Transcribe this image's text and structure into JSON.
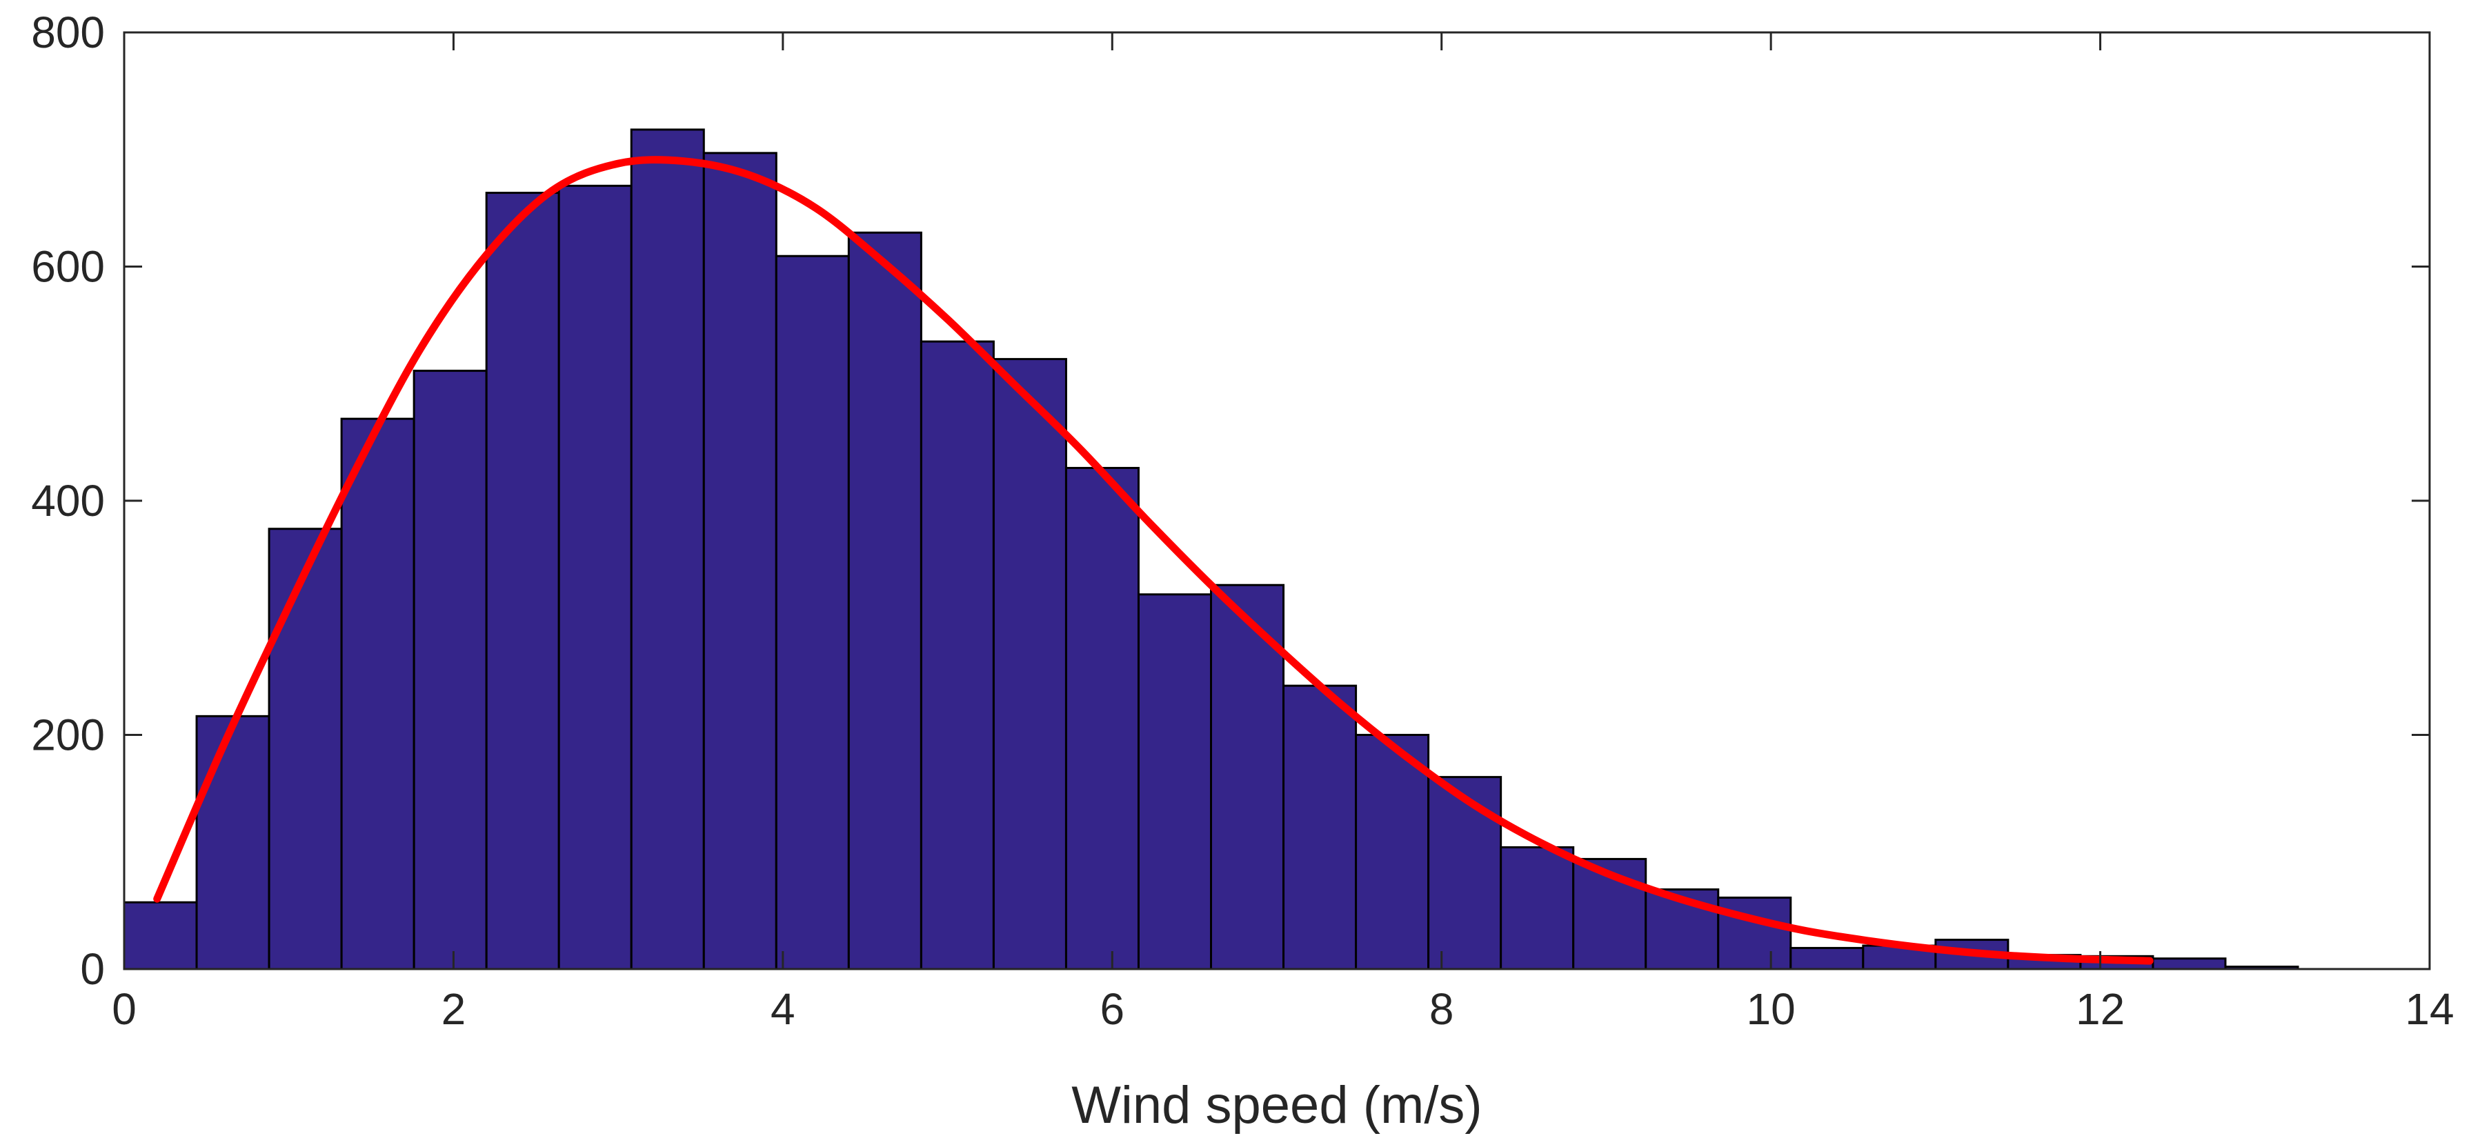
{
  "chart_data": {
    "type": "bar",
    "subtype": "histogram_with_fitted_curve",
    "title": "",
    "xlabel": "Wind speed (m/s)",
    "ylabel": "",
    "xlim": [
      0,
      14
    ],
    "ylim": [
      0,
      800
    ],
    "xticks": [
      0,
      2,
      4,
      6,
      8,
      10,
      12,
      14
    ],
    "yticks": [
      0,
      200,
      400,
      600,
      800
    ],
    "xtick_labels": [
      "0",
      "2",
      "4",
      "6",
      "8",
      "10",
      "12",
      "14"
    ],
    "ytick_labels": [
      "0",
      "200",
      "400",
      "600",
      "800"
    ],
    "grid": false,
    "legend": "none",
    "bin_start": 0,
    "bin_width": 0.44,
    "bins": [
      {
        "x0": 0.0,
        "x1": 0.44,
        "count": 57
      },
      {
        "x0": 0.44,
        "x1": 0.88,
        "count": 216
      },
      {
        "x0": 0.88,
        "x1": 1.32,
        "count": 376
      },
      {
        "x0": 1.32,
        "x1": 1.76,
        "count": 470
      },
      {
        "x0": 1.76,
        "x1": 2.2,
        "count": 511
      },
      {
        "x0": 2.2,
        "x1": 2.64,
        "count": 663
      },
      {
        "x0": 2.64,
        "x1": 3.08,
        "count": 669
      },
      {
        "x0": 3.08,
        "x1": 3.52,
        "count": 717
      },
      {
        "x0": 3.52,
        "x1": 3.96,
        "count": 697
      },
      {
        "x0": 3.96,
        "x1": 4.4,
        "count": 609
      },
      {
        "x0": 4.4,
        "x1": 4.84,
        "count": 629
      },
      {
        "x0": 4.84,
        "x1": 5.28,
        "count": 536
      },
      {
        "x0": 5.28,
        "x1": 5.72,
        "count": 521
      },
      {
        "x0": 5.72,
        "x1": 6.16,
        "count": 428
      },
      {
        "x0": 6.16,
        "x1": 6.6,
        "count": 320
      },
      {
        "x0": 6.6,
        "x1": 7.04,
        "count": 328
      },
      {
        "x0": 7.04,
        "x1": 7.48,
        "count": 242
      },
      {
        "x0": 7.48,
        "x1": 7.92,
        "count": 200
      },
      {
        "x0": 7.92,
        "x1": 8.36,
        "count": 164
      },
      {
        "x0": 8.36,
        "x1": 8.8,
        "count": 104
      },
      {
        "x0": 8.8,
        "x1": 9.24,
        "count": 94
      },
      {
        "x0": 9.24,
        "x1": 9.68,
        "count": 68
      },
      {
        "x0": 9.68,
        "x1": 10.12,
        "count": 61
      },
      {
        "x0": 10.12,
        "x1": 10.56,
        "count": 18
      },
      {
        "x0": 10.56,
        "x1": 11.0,
        "count": 20
      },
      {
        "x0": 11.0,
        "x1": 11.44,
        "count": 25
      },
      {
        "x0": 11.44,
        "x1": 11.88,
        "count": 12
      },
      {
        "x0": 11.88,
        "x1": 12.32,
        "count": 11
      },
      {
        "x0": 12.32,
        "x1": 12.76,
        "count": 9
      },
      {
        "x0": 12.76,
        "x1": 13.2,
        "count": 2
      }
    ],
    "fitted_curve": {
      "x": [
        0.2,
        0.6,
        1.0,
        1.4,
        1.8,
        2.2,
        2.6,
        3.0,
        3.4,
        3.8,
        4.2,
        4.6,
        5.0,
        5.4,
        5.8,
        6.2,
        6.6,
        7.0,
        7.4,
        7.8,
        8.2,
        8.6,
        9.0,
        9.4,
        9.8,
        10.2,
        10.6,
        11.0,
        11.4,
        11.8,
        12.3
      ],
      "y": [
        60,
        190,
        310,
        425,
        530,
        610,
        665,
        688,
        690,
        678,
        650,
        605,
        555,
        500,
        445,
        385,
        328,
        275,
        225,
        180,
        140,
        108,
        82,
        62,
        46,
        33,
        24,
        17,
        12,
        9,
        7
      ]
    },
    "colors": {
      "bar_fill": "#35258a",
      "bar_edge": "#000000",
      "curve": "#ff0000",
      "axis": "#262626"
    }
  }
}
